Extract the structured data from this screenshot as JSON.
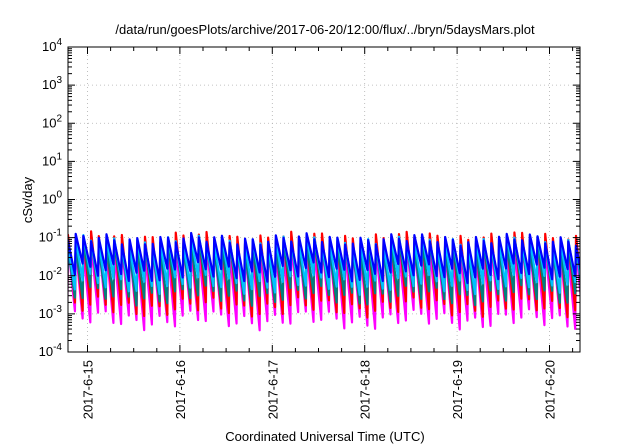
{
  "chart_data": {
    "type": "line",
    "title": "/data/run/goesPlots/archive/2017-06-20/12:00/flux/../bryn/5daysMars.plot",
    "xlabel": "Coordinated Universal Time (UTC)",
    "ylabel": "cSv/day",
    "y_scale": "log",
    "ylim": [
      -4,
      4
    ],
    "y_ticks": [
      {
        "exp": -4,
        "base": "10",
        "sup": "-4"
      },
      {
        "exp": -3,
        "base": "10",
        "sup": "-3"
      },
      {
        "exp": -2,
        "base": "10",
        "sup": "-2"
      },
      {
        "exp": -1,
        "base": "10",
        "sup": "-1"
      },
      {
        "exp": 0,
        "base": "10",
        "sup": "0"
      },
      {
        "exp": 1,
        "base": "10",
        "sup": "1"
      },
      {
        "exp": 2,
        "base": "10",
        "sup": "2"
      },
      {
        "exp": 3,
        "base": "10",
        "sup": "3"
      },
      {
        "exp": 4,
        "base": "10",
        "sup": "4"
      }
    ],
    "x_tick_labels": [
      "2017-6-15",
      "2017-6-16",
      "2017-6-17",
      "2017-6-18",
      "2017-6-19",
      "2017-6-20"
    ],
    "x_range_days": [
      0,
      5.55
    ],
    "grid": true,
    "sawtooth_period_days": 0.0833,
    "series": [
      {
        "color": "#ff00ff",
        "peak": 0.05,
        "trough": 0.0007
      },
      {
        "color": "#ff0000",
        "peak": 0.1,
        "trough": 0.0015
      },
      {
        "color": "#008080",
        "peak": 0.06,
        "trough": 0.003
      },
      {
        "color": "#00c0ff",
        "peak": 0.08,
        "trough": 0.006
      },
      {
        "color": "#0000ff",
        "peak": 0.09,
        "trough": 0.012
      }
    ]
  }
}
